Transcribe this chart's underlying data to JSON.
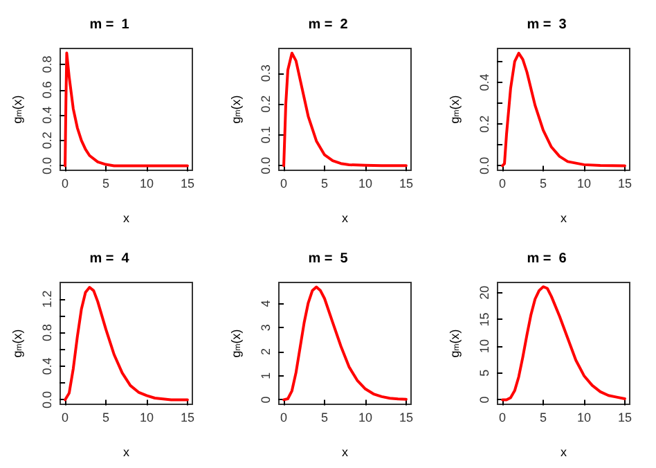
{
  "chart_data": [
    {
      "type": "line",
      "title": "m =  1",
      "xlabel": "x",
      "ylabel": "g$_{m}$(x)",
      "xlim": [
        -0.6,
        15.6
      ],
      "xticks": [
        0,
        5,
        10,
        15
      ],
      "ylim": [
        -0.036,
        0.926
      ],
      "yticks": [
        {
          "value": 0,
          "label": "0.0"
        },
        0.2,
        0.4,
        0.6,
        0.8
      ],
      "x": [
        0,
        0.1,
        0.2,
        0.5,
        1,
        1.5,
        2,
        2.5,
        3,
        4,
        5,
        6,
        8,
        10,
        12,
        15
      ],
      "series": [
        {
          "color": "#ff0000",
          "values": [
            0,
            0.5,
            0.89,
            0.7,
            0.45,
            0.3,
            0.2,
            0.13,
            0.08,
            0.03,
            0.01,
            0,
            0,
            0,
            0,
            0
          ]
        }
      ]
    },
    {
      "type": "line",
      "title": "m =  2",
      "xlabel": "x",
      "ylabel": "g$_{m}$(x)",
      "xlim": [
        -0.6,
        15.6
      ],
      "xticks": [
        0,
        5,
        10,
        15
      ],
      "ylim": [
        -0.015,
        0.38
      ],
      "yticks": [
        {
          "value": 0,
          "label": "0.0"
        },
        0.1,
        0.2,
        0.3
      ],
      "x": [
        0,
        0.25,
        0.5,
        1,
        1.5,
        2,
        3,
        4,
        5,
        6,
        7,
        8,
        10,
        12,
        15
      ],
      "series": [
        {
          "color": "#ff0000",
          "values": [
            0,
            0.2,
            0.31,
            0.365,
            0.34,
            0.28,
            0.16,
            0.08,
            0.035,
            0.016,
            0.007,
            0.003,
            0.001,
            0,
            0
          ]
        }
      ]
    },
    {
      "type": "line",
      "title": "m =  3",
      "xlabel": "x",
      "ylabel": "g$_{m}$(x)",
      "xlim": [
        -0.6,
        15.6
      ],
      "xticks": [
        0,
        5,
        10,
        15
      ],
      "ylim": [
        -0.022,
        0.563
      ],
      "yticks": [
        {
          "value": 0,
          "label": "0.0"
        },
        {
          "value": 0.1,
          "label": null
        },
        0.2,
        {
          "value": 0.3,
          "label": null
        },
        0.4,
        {
          "value": 0.5,
          "label": null
        }
      ],
      "x": [
        0,
        0.25,
        0.5,
        1,
        1.5,
        2,
        2.5,
        3,
        4,
        5,
        6,
        7,
        8,
        10,
        12,
        15
      ],
      "series": [
        {
          "color": "#ff0000",
          "values": [
            0,
            0.01,
            0.15,
            0.37,
            0.5,
            0.54,
            0.51,
            0.45,
            0.29,
            0.17,
            0.09,
            0.045,
            0.02,
            0.005,
            0.001,
            0
          ]
        }
      ]
    },
    {
      "type": "line",
      "title": "m =  4",
      "xlabel": "x",
      "ylabel": "g$_{m}$(x)",
      "xlim": [
        -0.6,
        15.6
      ],
      "xticks": [
        0,
        5,
        10,
        15
      ],
      "ylim": [
        -0.054,
        1.398
      ],
      "yticks": [
        {
          "value": 0,
          "label": "0.0"
        },
        {
          "value": 0.2,
          "label": null
        },
        0.4,
        {
          "value": 0.6,
          "label": null
        },
        0.8,
        {
          "value": 1,
          "label": null
        },
        1.2
      ],
      "x": [
        0,
        0.5,
        1,
        1.5,
        2,
        2.5,
        3,
        3.5,
        4,
        5,
        6,
        7,
        8,
        9,
        10,
        11,
        12,
        13,
        15
      ],
      "series": [
        {
          "color": "#ff0000",
          "values": [
            0,
            0.08,
            0.37,
            0.75,
            1.08,
            1.28,
            1.34,
            1.3,
            1.17,
            0.84,
            0.54,
            0.32,
            0.17,
            0.09,
            0.05,
            0.02,
            0.01,
            0,
            0
          ]
        }
      ]
    },
    {
      "type": "line",
      "title": "m =  5",
      "xlabel": "x",
      "ylabel": "g$_{m}$(x)",
      "xlim": [
        -0.6,
        15.6
      ],
      "xticks": [
        0,
        5,
        10,
        15
      ],
      "ylim": [
        -0.19,
        4.88
      ],
      "yticks": [
        0,
        1,
        2,
        3,
        4
      ],
      "x": [
        0,
        0.5,
        1,
        1.5,
        2,
        2.5,
        3,
        3.5,
        4,
        4.5,
        5,
        6,
        7,
        8,
        9,
        10,
        11,
        12,
        13,
        14,
        15
      ],
      "series": [
        {
          "color": "#ff0000",
          "values": [
            0,
            0.04,
            0.37,
            1.13,
            2.17,
            3.21,
            4.03,
            4.54,
            4.69,
            4.54,
            4.21,
            3.21,
            2.23,
            1.37,
            0.81,
            0.45,
            0.24,
            0.13,
            0.06,
            0.03,
            0.02
          ]
        }
      ]
    },
    {
      "type": "line",
      "title": "m =  6",
      "xlabel": "x",
      "ylabel": "g$_{m}$(x)",
      "xlim": [
        -0.6,
        15.6
      ],
      "xticks": [
        0,
        5,
        10,
        15
      ],
      "ylim": [
        -0.84,
        21.9
      ],
      "yticks": [
        0,
        5,
        10,
        15,
        20
      ],
      "x": [
        0,
        0.5,
        1,
        1.5,
        2,
        2.5,
        3,
        3.5,
        4,
        4.5,
        5,
        5.5,
        6,
        7,
        8,
        9,
        10,
        11,
        12,
        13,
        14,
        15
      ],
      "series": [
        {
          "color": "#ff0000",
          "values": [
            0,
            0,
            0.4,
            1.7,
            4.3,
            8,
            12.1,
            15.9,
            18.8,
            20.4,
            21.1,
            20.8,
            19.3,
            15.6,
            11.5,
            7.4,
            4.5,
            2.7,
            1.5,
            0.8,
            0.5,
            0.2
          ]
        }
      ]
    }
  ]
}
